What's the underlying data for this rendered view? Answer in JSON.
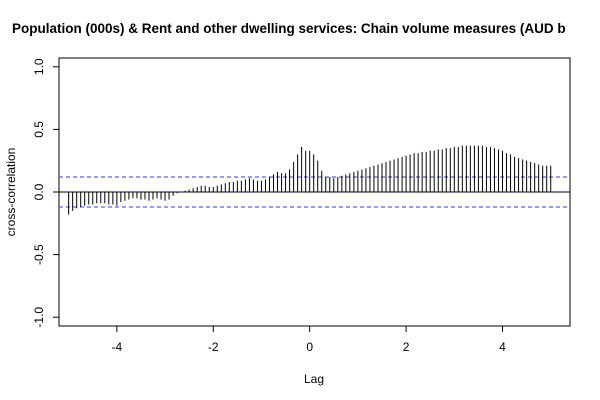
{
  "chart_data": {
    "type": "bar",
    "title": "Population (000s) & Rent and other dwelling services: Chain volume measures (AUD b",
    "xlabel": "Lag",
    "ylabel": "cross-correlation",
    "xlim": [
      -5.2,
      5.4
    ],
    "ylim": [
      -1.07,
      1.07
    ],
    "x_ticks": [
      -4,
      -2,
      0,
      2,
      4
    ],
    "x_tick_labels": [
      "-4",
      "-2",
      "0",
      "2",
      "4"
    ],
    "y_ticks": [
      -1.0,
      -0.5,
      0.0,
      0.5,
      1.0
    ],
    "y_tick_labels": [
      "-1.0",
      "-0.5",
      "0.0",
      "0.5",
      "1.0"
    ],
    "confidence_bound": 0.12,
    "grid": false,
    "colors": {
      "bars": "#000000",
      "confidence": "#3a3aee",
      "zero_line": "#000000"
    },
    "series": [
      {
        "x": [
          -5.0,
          -4.917,
          -4.833,
          -4.75,
          -4.667,
          -4.583,
          -4.5,
          -4.417,
          -4.333,
          -4.25,
          -4.167,
          -4.083,
          -4.0,
          -3.917,
          -3.833,
          -3.75,
          -3.667,
          -3.583,
          -3.5,
          -3.417,
          -3.333,
          -3.25,
          -3.167,
          -3.083,
          -3.0,
          -2.917,
          -2.833,
          -2.75,
          -2.667,
          -2.583,
          -2.5,
          -2.417,
          -2.333,
          -2.25,
          -2.167,
          -2.083,
          -2.0,
          -1.917,
          -1.833,
          -1.75,
          -1.667,
          -1.583,
          -1.5,
          -1.417,
          -1.333,
          -1.25,
          -1.167,
          -1.083,
          -1.0,
          -0.917,
          -0.833,
          -0.75,
          -0.667,
          -0.583,
          -0.5,
          -0.417,
          -0.333,
          -0.25,
          -0.167,
          -0.083,
          0.0,
          0.083,
          0.167,
          0.25,
          0.333,
          0.417,
          0.5,
          0.583,
          0.667,
          0.75,
          0.833,
          0.917,
          1.0,
          1.083,
          1.167,
          1.25,
          1.333,
          1.417,
          1.5,
          1.583,
          1.667,
          1.75,
          1.833,
          1.917,
          2.0,
          2.083,
          2.167,
          2.25,
          2.333,
          2.417,
          2.5,
          2.583,
          2.667,
          2.75,
          2.833,
          2.917,
          3.0,
          3.083,
          3.167,
          3.25,
          3.333,
          3.417,
          3.5,
          3.583,
          3.667,
          3.75,
          3.833,
          3.917,
          4.0,
          4.083,
          4.167,
          4.25,
          4.333,
          4.417,
          4.5,
          4.583,
          4.667,
          4.75,
          4.833,
          4.917,
          5.0
        ],
        "values": [
          -0.18,
          -0.15,
          -0.13,
          -0.12,
          -0.11,
          -0.1,
          -0.1,
          -0.09,
          -0.09,
          -0.09,
          -0.1,
          -0.1,
          -0.11,
          -0.08,
          -0.07,
          -0.06,
          -0.05,
          -0.05,
          -0.06,
          -0.06,
          -0.07,
          -0.06,
          -0.05,
          -0.06,
          -0.07,
          -0.06,
          -0.03,
          -0.01,
          0.0,
          0.01,
          0.02,
          0.03,
          0.04,
          0.05,
          0.05,
          0.04,
          0.04,
          0.05,
          0.06,
          0.07,
          0.08,
          0.08,
          0.09,
          0.09,
          0.1,
          0.11,
          0.1,
          0.09,
          0.09,
          0.1,
          0.12,
          0.14,
          0.16,
          0.15,
          0.15,
          0.18,
          0.24,
          0.3,
          0.36,
          0.33,
          0.33,
          0.3,
          0.25,
          0.17,
          0.12,
          0.12,
          0.11,
          0.12,
          0.13,
          0.14,
          0.15,
          0.16,
          0.17,
          0.18,
          0.19,
          0.2,
          0.21,
          0.22,
          0.23,
          0.24,
          0.25,
          0.26,
          0.27,
          0.28,
          0.29,
          0.3,
          0.31,
          0.31,
          0.32,
          0.32,
          0.33,
          0.33,
          0.34,
          0.34,
          0.35,
          0.35,
          0.36,
          0.36,
          0.37,
          0.37,
          0.37,
          0.37,
          0.37,
          0.37,
          0.36,
          0.36,
          0.35,
          0.34,
          0.33,
          0.31,
          0.3,
          0.28,
          0.27,
          0.26,
          0.25,
          0.24,
          0.23,
          0.22,
          0.21,
          0.21,
          0.21
        ]
      }
    ]
  }
}
